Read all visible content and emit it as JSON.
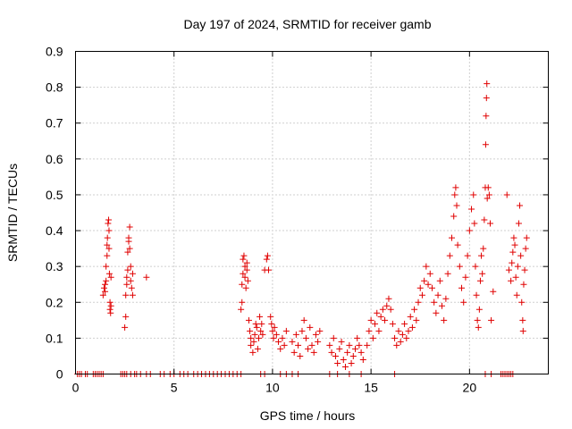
{
  "chart_data": {
    "type": "scatter",
    "title": "Day 197 of 2024, SRMTID for receiver gamb",
    "xlabel": "GPS time / hours",
    "ylabel": "SRMTID / TECUs",
    "xlim": [
      0,
      24
    ],
    "ylim": [
      0,
      0.9
    ],
    "x_ticks": [
      0,
      5,
      10,
      15,
      20
    ],
    "x_tick_labels": [
      "0",
      "5",
      "10",
      "15",
      "20"
    ],
    "y_ticks": [
      0,
      0.1,
      0.2,
      0.3,
      0.4,
      0.5,
      0.6,
      0.7,
      0.8,
      0.9
    ],
    "y_tick_labels": [
      "0",
      "0.1",
      "0.2",
      "0.3",
      "0.4",
      "0.5",
      "0.6",
      "0.7",
      "0.8",
      "0.9"
    ],
    "grid": true,
    "marker": "plus",
    "color": "#e00000",
    "series": [
      {
        "name": "SRMTID",
        "points": [
          [
            0.1,
            0
          ],
          [
            0.2,
            0
          ],
          [
            0.3,
            0
          ],
          [
            0.5,
            0
          ],
          [
            0.6,
            0
          ],
          [
            0.9,
            0
          ],
          [
            1.0,
            0
          ],
          [
            1.1,
            0
          ],
          [
            1.2,
            0
          ],
          [
            1.3,
            0
          ],
          [
            1.4,
            0
          ],
          [
            2.3,
            0
          ],
          [
            2.4,
            0
          ],
          [
            2.5,
            0
          ],
          [
            2.6,
            0
          ],
          [
            2.8,
            0
          ],
          [
            3.0,
            0
          ],
          [
            3.1,
            0
          ],
          [
            3.3,
            0
          ],
          [
            3.6,
            0
          ],
          [
            3.8,
            0
          ],
          [
            4.3,
            0
          ],
          [
            4.5,
            0
          ],
          [
            4.8,
            0
          ],
          [
            5.0,
            0
          ],
          [
            5.3,
            0
          ],
          [
            5.5,
            0
          ],
          [
            5.7,
            0
          ],
          [
            6.0,
            0
          ],
          [
            6.2,
            0
          ],
          [
            6.4,
            0
          ],
          [
            6.6,
            0
          ],
          [
            6.8,
            0
          ],
          [
            7.0,
            0
          ],
          [
            7.2,
            0
          ],
          [
            7.4,
            0
          ],
          [
            7.6,
            0
          ],
          [
            7.8,
            0
          ],
          [
            8.0,
            0
          ],
          [
            8.2,
            0
          ],
          [
            8.4,
            0
          ],
          [
            9.4,
            0
          ],
          [
            9.6,
            0
          ],
          [
            10.4,
            0
          ],
          [
            10.7,
            0
          ],
          [
            11.0,
            0
          ],
          [
            11.3,
            0
          ],
          [
            12.9,
            0
          ],
          [
            13.3,
            0
          ],
          [
            13.9,
            0
          ],
          [
            14.5,
            0
          ],
          [
            16.2,
            0
          ],
          [
            20.8,
            0
          ],
          [
            21.1,
            0
          ],
          [
            21.6,
            0
          ],
          [
            21.7,
            0
          ],
          [
            21.8,
            0
          ],
          [
            21.9,
            0
          ],
          [
            22.0,
            0
          ],
          [
            22.1,
            0
          ],
          [
            22.2,
            0
          ],
          [
            1.4,
            0.22
          ],
          [
            1.45,
            0.24
          ],
          [
            1.5,
            0.23
          ],
          [
            1.5,
            0.25
          ],
          [
            1.55,
            0.26
          ],
          [
            1.55,
            0.3
          ],
          [
            1.6,
            0.33
          ],
          [
            1.6,
            0.36
          ],
          [
            1.62,
            0.38
          ],
          [
            1.65,
            0.42
          ],
          [
            1.68,
            0.43
          ],
          [
            1.7,
            0.4
          ],
          [
            1.7,
            0.35
          ],
          [
            1.72,
            0.28
          ],
          [
            1.75,
            0.2
          ],
          [
            1.75,
            0.18
          ],
          [
            1.78,
            0.17
          ],
          [
            1.8,
            0.19
          ],
          [
            1.8,
            0.27
          ],
          [
            2.5,
            0.13
          ],
          [
            2.55,
            0.16
          ],
          [
            2.55,
            0.22
          ],
          [
            2.6,
            0.25
          ],
          [
            2.6,
            0.27
          ],
          [
            2.65,
            0.29
          ],
          [
            2.65,
            0.34
          ],
          [
            2.7,
            0.37
          ],
          [
            2.7,
            0.38
          ],
          [
            2.75,
            0.41
          ],
          [
            2.75,
            0.35
          ],
          [
            2.8,
            0.3
          ],
          [
            2.8,
            0.26
          ],
          [
            2.85,
            0.24
          ],
          [
            2.9,
            0.28
          ],
          [
            2.9,
            0.22
          ],
          [
            3.6,
            0.27
          ],
          [
            8.4,
            0.18
          ],
          [
            8.45,
            0.2
          ],
          [
            8.45,
            0.25
          ],
          [
            8.5,
            0.28
          ],
          [
            8.5,
            0.32
          ],
          [
            8.55,
            0.33
          ],
          [
            8.6,
            0.3
          ],
          [
            8.6,
            0.27
          ],
          [
            8.65,
            0.24
          ],
          [
            8.7,
            0.29
          ],
          [
            8.7,
            0.31
          ],
          [
            8.75,
            0.26
          ],
          [
            8.8,
            0.15
          ],
          [
            8.85,
            0.12
          ],
          [
            8.9,
            0.1
          ],
          [
            8.9,
            0.08
          ],
          [
            9.0,
            0.06
          ],
          [
            9.05,
            0.09
          ],
          [
            9.1,
            0.11
          ],
          [
            9.15,
            0.14
          ],
          [
            9.2,
            0.13
          ],
          [
            9.25,
            0.07
          ],
          [
            9.3,
            0.1
          ],
          [
            9.35,
            0.16
          ],
          [
            9.4,
            0.12
          ],
          [
            9.45,
            0.14
          ],
          [
            9.5,
            0.11
          ],
          [
            9.6,
            0.29
          ],
          [
            9.7,
            0.32
          ],
          [
            9.75,
            0.33
          ],
          [
            9.8,
            0.29
          ],
          [
            9.9,
            0.16
          ],
          [
            9.95,
            0.14
          ],
          [
            10.0,
            0.12
          ],
          [
            10.05,
            0.1
          ],
          [
            10.1,
            0.13
          ],
          [
            10.2,
            0.11
          ],
          [
            10.3,
            0.09
          ],
          [
            10.4,
            0.07
          ],
          [
            10.5,
            0.1
          ],
          [
            10.6,
            0.08
          ],
          [
            10.7,
            0.12
          ],
          [
            11.0,
            0.09
          ],
          [
            11.1,
            0.06
          ],
          [
            11.2,
            0.11
          ],
          [
            11.3,
            0.08
          ],
          [
            11.4,
            0.05
          ],
          [
            11.5,
            0.12
          ],
          [
            11.6,
            0.15
          ],
          [
            11.7,
            0.1
          ],
          [
            11.8,
            0.07
          ],
          [
            11.9,
            0.13
          ],
          [
            12.0,
            0.08
          ],
          [
            12.1,
            0.06
          ],
          [
            12.2,
            0.11
          ],
          [
            12.3,
            0.09
          ],
          [
            12.4,
            0.12
          ],
          [
            12.9,
            0.08
          ],
          [
            13.0,
            0.06
          ],
          [
            13.1,
            0.1
          ],
          [
            13.2,
            0.05
          ],
          [
            13.3,
            0.03
          ],
          [
            13.4,
            0.07
          ],
          [
            13.5,
            0.09
          ],
          [
            13.6,
            0.04
          ],
          [
            13.7,
            0.02
          ],
          [
            13.8,
            0.06
          ],
          [
            13.9,
            0.08
          ],
          [
            14.0,
            0.03
          ],
          [
            14.1,
            0.05
          ],
          [
            14.2,
            0.07
          ],
          [
            14.3,
            0.1
          ],
          [
            14.4,
            0.08
          ],
          [
            14.5,
            0.06
          ],
          [
            14.6,
            0.04
          ],
          [
            14.8,
            0.08
          ],
          [
            14.9,
            0.12
          ],
          [
            15.0,
            0.15
          ],
          [
            15.1,
            0.1
          ],
          [
            15.2,
            0.14
          ],
          [
            15.3,
            0.17
          ],
          [
            15.4,
            0.12
          ],
          [
            15.5,
            0.16
          ],
          [
            15.6,
            0.18
          ],
          [
            15.7,
            0.15
          ],
          [
            15.8,
            0.19
          ],
          [
            15.9,
            0.21
          ],
          [
            16.0,
            0.18
          ],
          [
            16.1,
            0.14
          ],
          [
            16.2,
            0.1
          ],
          [
            16.3,
            0.08
          ],
          [
            16.4,
            0.12
          ],
          [
            16.5,
            0.09
          ],
          [
            16.6,
            0.11
          ],
          [
            16.7,
            0.14
          ],
          [
            16.8,
            0.1
          ],
          [
            16.9,
            0.12
          ],
          [
            17.0,
            0.16
          ],
          [
            17.1,
            0.13
          ],
          [
            17.2,
            0.18
          ],
          [
            17.3,
            0.15
          ],
          [
            17.4,
            0.2
          ],
          [
            17.5,
            0.24
          ],
          [
            17.6,
            0.22
          ],
          [
            17.7,
            0.26
          ],
          [
            17.8,
            0.3
          ],
          [
            17.9,
            0.25
          ],
          [
            18.0,
            0.28
          ],
          [
            18.1,
            0.24
          ],
          [
            18.2,
            0.2
          ],
          [
            18.3,
            0.17
          ],
          [
            18.4,
            0.22
          ],
          [
            18.5,
            0.26
          ],
          [
            18.6,
            0.19
          ],
          [
            18.7,
            0.15
          ],
          [
            18.8,
            0.21
          ],
          [
            18.9,
            0.28
          ],
          [
            19.0,
            0.33
          ],
          [
            19.1,
            0.38
          ],
          [
            19.2,
            0.44
          ],
          [
            19.25,
            0.5
          ],
          [
            19.3,
            0.52
          ],
          [
            19.35,
            0.47
          ],
          [
            19.4,
            0.36
          ],
          [
            19.5,
            0.3
          ],
          [
            19.6,
            0.24
          ],
          [
            19.7,
            0.2
          ],
          [
            19.8,
            0.27
          ],
          [
            19.9,
            0.33
          ],
          [
            20.0,
            0.4
          ],
          [
            20.1,
            0.46
          ],
          [
            20.2,
            0.5
          ],
          [
            20.25,
            0.42
          ],
          [
            20.3,
            0.3
          ],
          [
            20.35,
            0.22
          ],
          [
            20.4,
            0.15
          ],
          [
            20.45,
            0.13
          ],
          [
            20.5,
            0.18
          ],
          [
            20.55,
            0.26
          ],
          [
            20.6,
            0.33
          ],
          [
            20.65,
            0.28
          ],
          [
            20.7,
            0.35
          ],
          [
            20.75,
            0.43
          ],
          [
            20.8,
            0.52
          ],
          [
            20.82,
            0.64
          ],
          [
            20.84,
            0.72
          ],
          [
            20.86,
            0.77
          ],
          [
            20.88,
            0.81
          ],
          [
            20.9,
            0.49
          ],
          [
            20.95,
            0.52
          ],
          [
            21.0,
            0.5
          ],
          [
            21.05,
            0.42
          ],
          [
            21.1,
            0.15
          ],
          [
            21.2,
            0.23
          ],
          [
            21.9,
            0.5
          ],
          [
            22.0,
            0.29
          ],
          [
            22.1,
            0.26
          ],
          [
            22.15,
            0.31
          ],
          [
            22.2,
            0.34
          ],
          [
            22.25,
            0.38
          ],
          [
            22.3,
            0.36
          ],
          [
            22.35,
            0.27
          ],
          [
            22.4,
            0.22
          ],
          [
            22.45,
            0.3
          ],
          [
            22.5,
            0.42
          ],
          [
            22.55,
            0.47
          ],
          [
            22.6,
            0.33
          ],
          [
            22.65,
            0.2
          ],
          [
            22.7,
            0.15
          ],
          [
            22.72,
            0.12
          ],
          [
            22.75,
            0.25
          ],
          [
            22.8,
            0.29
          ],
          [
            22.85,
            0.35
          ],
          [
            22.9,
            0.38
          ]
        ]
      }
    ]
  }
}
